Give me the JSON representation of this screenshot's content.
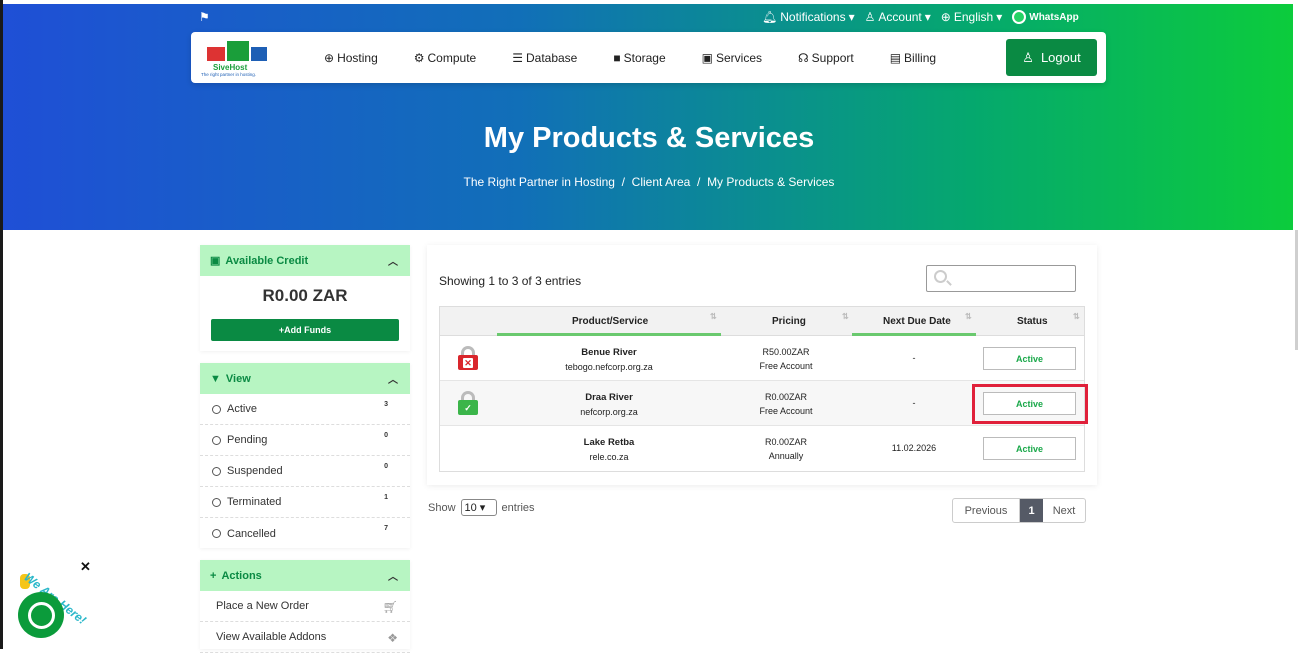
{
  "topbar": {
    "notifications": "Notifications",
    "account": "Account",
    "language": "English",
    "whatsapp": "WhatsApp"
  },
  "logo": {
    "name": "SiveHost",
    "tagline": "The right partner in hosting."
  },
  "nav": {
    "items": [
      {
        "label": "Hosting",
        "icon": "globe-icon",
        "glyph": "⊕"
      },
      {
        "label": "Compute",
        "icon": "gear-icon",
        "glyph": "⚙"
      },
      {
        "label": "Database",
        "icon": "database-icon",
        "glyph": "☰"
      },
      {
        "label": "Storage",
        "icon": "box-icon",
        "glyph": "■"
      },
      {
        "label": "Services",
        "icon": "gift-icon",
        "glyph": "▣"
      },
      {
        "label": "Support",
        "icon": "headset-icon",
        "glyph": "☊"
      },
      {
        "label": "Billing",
        "icon": "receipt-icon",
        "glyph": "▤"
      }
    ],
    "logout": "Logout"
  },
  "hero": {
    "title": "My Products & Services",
    "breadcrumb": [
      "The Right Partner in Hosting",
      "Client Area",
      "My Products & Services"
    ]
  },
  "sidebar": {
    "credit": {
      "title": "Available Credit",
      "value": "R0.00 ZAR",
      "add_funds": "Add Funds"
    },
    "view": {
      "title": "View",
      "items": [
        {
          "label": "Active",
          "count": "3"
        },
        {
          "label": "Pending",
          "count": "0"
        },
        {
          "label": "Suspended",
          "count": "0"
        },
        {
          "label": "Terminated",
          "count": "1"
        },
        {
          "label": "Cancelled",
          "count": "7"
        }
      ]
    },
    "actions": {
      "title": "Actions",
      "items": [
        {
          "label": "Place a New Order"
        },
        {
          "label": "View Available Addons"
        }
      ]
    }
  },
  "table": {
    "showing": "Showing 1 to 3 of 3 entries",
    "columns": [
      "Product/Service",
      "Pricing",
      "Next Due Date",
      "Status"
    ],
    "rows": [
      {
        "name": "Benue River",
        "domain": "tebogo.nefcorp.org.za",
        "price": "R50.00ZAR",
        "cycle": "Free Account",
        "due": "-",
        "status": "Active",
        "lock": "red"
      },
      {
        "name": "Draa River",
        "domain": "nefcorp.org.za",
        "price": "R0.00ZAR",
        "cycle": "Free Account",
        "due": "-",
        "status": "Active",
        "lock": "green"
      },
      {
        "name": "Lake Retba",
        "domain": "rele.co.za",
        "price": "R0.00ZAR",
        "cycle": "Annually",
        "due": "11.02.2026",
        "status": "Active",
        "lock": "none"
      }
    ],
    "length": {
      "show": "Show",
      "value": "10",
      "entries": "entries"
    },
    "pager": {
      "previous": "Previous",
      "page": "1",
      "next": "Next"
    }
  },
  "chat": {
    "label": "We Are Here!",
    "close": "✕"
  },
  "colors": {
    "brand_green": "#0a8a43",
    "hero_start": "#1f4fd6",
    "hero_end": "#0ccc3c",
    "highlight": "#e0203a"
  }
}
